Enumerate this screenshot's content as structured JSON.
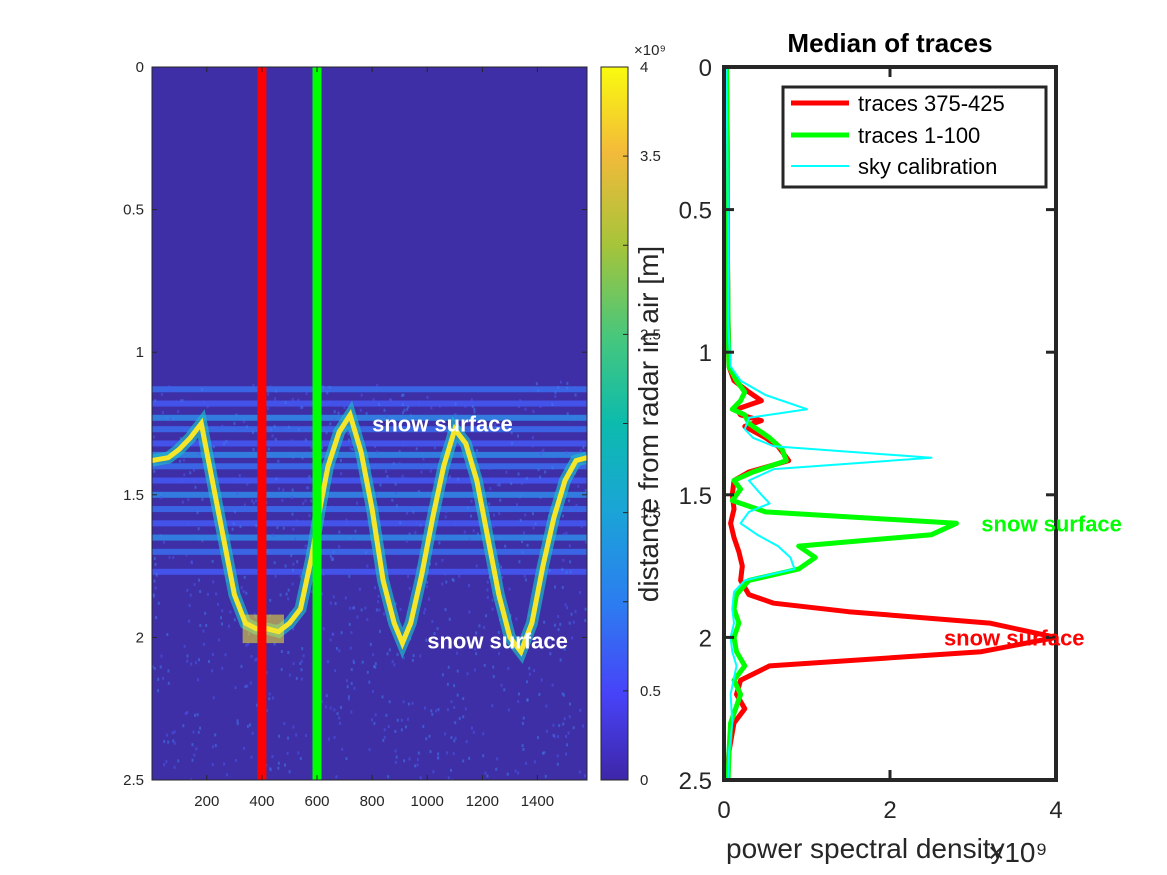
{
  "chart_data": [
    {
      "type": "heatmap",
      "title": "",
      "xlabel": "",
      "ylabel": "",
      "xlim": [
        1,
        1580
      ],
      "ylim": [
        0,
        2.5
      ],
      "y_reversed": true,
      "xticks": [
        "200",
        "400",
        "600",
        "800",
        "1000",
        "1200",
        "1400"
      ],
      "xtick_values": [
        200,
        400,
        600,
        800,
        1000,
        1200,
        1400
      ],
      "yticks": [
        "0",
        "0.5",
        "1",
        "1.5",
        "2",
        "2.5"
      ],
      "ytick_values": [
        0,
        0.5,
        1,
        1.5,
        2,
        2.5
      ],
      "colormap": "parula",
      "background_value": 350000000.0,
      "colorbar": {
        "range": [
          0,
          4000000000.0
        ],
        "ticks": [
          "0",
          "0.5",
          "1",
          "1.5",
          "2",
          "2.5",
          "3",
          "3.5",
          "4"
        ],
        "tick_values": [
          0,
          0.5,
          1,
          1.5,
          2,
          2.5,
          3,
          3.5,
          4
        ],
        "exponent_label": "×10⁹"
      },
      "clutter_band_depths": [
        1.13,
        1.18,
        1.23,
        1.27,
        1.32,
        1.36,
        1.4,
        1.45,
        1.5,
        1.55,
        1.6,
        1.65,
        1.7,
        1.77
      ],
      "surface_trace": {
        "x": [
          1,
          60,
          100,
          140,
          180,
          220,
          260,
          300,
          340,
          380,
          420,
          460,
          500,
          540,
          580,
          610,
          640,
          680,
          720,
          760,
          800,
          840,
          880,
          910,
          940,
          980,
          1020,
          1060,
          1100,
          1140,
          1180,
          1220,
          1260,
          1300,
          1340,
          1380,
          1420,
          1460,
          1500,
          1540,
          1580
        ],
        "y": [
          1.38,
          1.37,
          1.34,
          1.3,
          1.25,
          1.45,
          1.65,
          1.85,
          1.95,
          1.97,
          1.97,
          1.98,
          1.95,
          1.9,
          1.72,
          1.55,
          1.4,
          1.28,
          1.22,
          1.35,
          1.55,
          1.8,
          1.95,
          2.02,
          1.95,
          1.78,
          1.58,
          1.4,
          1.27,
          1.32,
          1.45,
          1.65,
          1.85,
          2.0,
          2.05,
          1.95,
          1.75,
          1.58,
          1.45,
          1.38,
          1.37
        ]
      },
      "highlight_lines": [
        {
          "x": 400,
          "color": "#ff0000"
        },
        {
          "x": 600,
          "color": "#00ff00"
        }
      ],
      "annotations": [
        {
          "text": "snow surface",
          "x": 800,
          "y": 1.25,
          "color": "#ffffff"
        },
        {
          "text": "snow surface",
          "x": 1000,
          "y": 2.01,
          "color": "#ffffff"
        }
      ],
      "ylabel_overlay": "distance from radar in air [m]"
    },
    {
      "type": "line",
      "title": "Median of traces",
      "xlabel": "power spectral density",
      "x_exponent_label": "×10⁹",
      "ylabel": "",
      "xlim": [
        0,
        4000000000.0
      ],
      "ylim": [
        0,
        2.5
      ],
      "y_reversed": true,
      "xticks": [
        "0",
        "2",
        "4"
      ],
      "xtick_values": [
        0,
        2,
        4
      ],
      "yticks": [
        "0",
        "0.5",
        "1",
        "1.5",
        "2",
        "2.5"
      ],
      "ytick_values": [
        0,
        0.5,
        1,
        1.5,
        2,
        2.5
      ],
      "legend_position": "top-right",
      "series": [
        {
          "name": "traces 375-425",
          "color": "#ff0000",
          "width": 5,
          "depth": [
            0,
            0.3,
            0.6,
            0.9,
            1.05,
            1.1,
            1.14,
            1.17,
            1.2,
            1.22,
            1.24,
            1.26,
            1.3,
            1.33,
            1.38,
            1.42,
            1.45,
            1.5,
            1.55,
            1.6,
            1.65,
            1.7,
            1.75,
            1.8,
            1.85,
            1.88,
            1.91,
            1.95,
            2.0,
            2.05,
            2.1,
            2.15,
            2.2,
            2.25,
            2.3,
            2.4,
            2.5
          ],
          "psd": [
            30000000.0,
            40000000.0,
            40000000.0,
            50000000.0,
            60000000.0,
            120000000.0,
            300000000.0,
            450000000.0,
            150000000.0,
            200000000.0,
            450000000.0,
            250000000.0,
            500000000.0,
            650000000.0,
            780000000.0,
            300000000.0,
            120000000.0,
            100000000.0,
            120000000.0,
            80000000.0,
            120000000.0,
            180000000.0,
            220000000.0,
            200000000.0,
            300000000.0,
            600000000.0,
            1500000000.0,
            3200000000.0,
            4000000000.0,
            3100000000.0,
            550000000.0,
            200000000.0,
            150000000.0,
            250000000.0,
            120000000.0,
            60000000.0,
            40000000.0
          ]
        },
        {
          "name": "traces 1-100",
          "color": "#00ff00",
          "width": 5,
          "depth": [
            0,
            0.3,
            0.6,
            0.9,
            1.05,
            1.1,
            1.14,
            1.17,
            1.2,
            1.22,
            1.25,
            1.3,
            1.34,
            1.38,
            1.42,
            1.45,
            1.48,
            1.52,
            1.56,
            1.6,
            1.64,
            1.68,
            1.72,
            1.76,
            1.8,
            1.85,
            1.9,
            1.95,
            2.0,
            2.05,
            2.1,
            2.15,
            2.2,
            2.3,
            2.4,
            2.5
          ],
          "psd": [
            30000000.0,
            40000000.0,
            40000000.0,
            50000000.0,
            60000000.0,
            150000000.0,
            250000000.0,
            200000000.0,
            100000000.0,
            250000000.0,
            300000000.0,
            550000000.0,
            700000000.0,
            750000000.0,
            350000000.0,
            120000000.0,
            200000000.0,
            100000000.0,
            500000000.0,
            2800000000.0,
            2500000000.0,
            900000000.0,
            1100000000.0,
            900000000.0,
            300000000.0,
            150000000.0,
            120000000.0,
            180000000.0,
            120000000.0,
            150000000.0,
            250000000.0,
            120000000.0,
            200000000.0,
            80000000.0,
            60000000.0,
            50000000.0
          ]
        },
        {
          "name": "sky calibration",
          "color": "#00ffff",
          "width": 2,
          "depth": [
            0,
            0.3,
            0.6,
            0.9,
            1.05,
            1.1,
            1.15,
            1.2,
            1.23,
            1.27,
            1.3,
            1.33,
            1.37,
            1.41,
            1.45,
            1.5,
            1.53,
            1.56,
            1.6,
            1.64,
            1.68,
            1.72,
            1.76,
            1.8,
            1.84,
            1.9,
            1.95,
            2.0,
            2.05,
            2.1,
            2.2,
            2.3,
            2.4,
            2.5
          ],
          "psd": [
            30000000.0,
            40000000.0,
            50000000.0,
            50000000.0,
            80000000.0,
            200000000.0,
            500000000.0,
            1000000000.0,
            300000000.0,
            250000000.0,
            350000000.0,
            600000000.0,
            2500000000.0,
            600000000.0,
            300000000.0,
            450000000.0,
            550000000.0,
            300000000.0,
            200000000.0,
            400000000.0,
            650000000.0,
            800000000.0,
            850000000.0,
            250000000.0,
            120000000.0,
            100000000.0,
            120000000.0,
            80000000.0,
            100000000.0,
            150000000.0,
            80000000.0,
            100000000.0,
            60000000.0,
            50000000.0
          ]
        }
      ],
      "annotations": [
        {
          "text": "snow surface",
          "x": 3100000000.0,
          "y": 1.6,
          "color": "#00ff00"
        },
        {
          "text": "snow surface",
          "x": 2650000000.0,
          "y": 2.0,
          "color": "#ff0000"
        }
      ]
    }
  ]
}
